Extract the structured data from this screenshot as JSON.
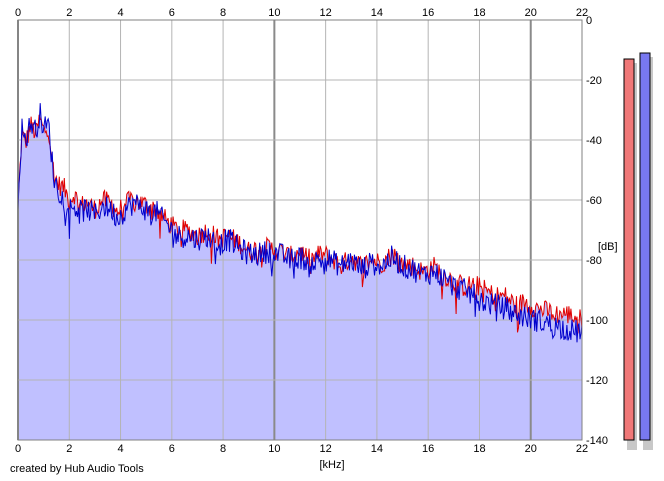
{
  "footer": {
    "credit": "created by Hub Audio Tools"
  },
  "chart_data": {
    "type": "area",
    "xlabel": "[kHz]",
    "ylabel": "[dB]",
    "xlim": [
      0,
      22
    ],
    "ylim": [
      -140,
      0
    ],
    "x_ticks": [
      0,
      2,
      4,
      6,
      8,
      10,
      12,
      14,
      16,
      18,
      20,
      22
    ],
    "y_ticks": [
      0,
      -20,
      -40,
      -60,
      -80,
      -100,
      -120,
      -140
    ],
    "y_tick_labels": [
      "0",
      "-20",
      "-40",
      "-60",
      "-80",
      "-100",
      "-120",
      "-140"
    ],
    "grid": true,
    "series": [
      {
        "color": "#e00000",
        "x": [
          0,
          0.15,
          0.3,
          0.5,
          0.7,
          0.85,
          1.0,
          1.2,
          1.4,
          1.6,
          1.8,
          2.0,
          2.2,
          2.4,
          2.7,
          3.0,
          3.3,
          3.6,
          3.9,
          4.2,
          4.5,
          4.8,
          5.1,
          5.4,
          5.8,
          6.2,
          6.6,
          7.0,
          7.4,
          7.8,
          8.2,
          8.6,
          9.0,
          9.4,
          9.8,
          10.2,
          10.6,
          11.0,
          11.4,
          11.8,
          12.2,
          12.6,
          13.0,
          13.4,
          13.8,
          14.2,
          14.6,
          15.0,
          15.4,
          15.8,
          16.2,
          16.6,
          17.0,
          17.4,
          17.8,
          18.2,
          18.6,
          19.0,
          19.4,
          19.8,
          20.2,
          20.6,
          21.0,
          21.4,
          21.8,
          22.0
        ],
        "values": [
          -62,
          -38,
          -41,
          -35,
          -38,
          -33,
          -37,
          -36,
          -52,
          -55,
          -56,
          -60,
          -58,
          -62,
          -61,
          -63,
          -60,
          -61,
          -64,
          -61,
          -60,
          -61,
          -62,
          -63,
          -67,
          -70,
          -70,
          -72,
          -70,
          -73,
          -72,
          -74,
          -77,
          -76,
          -76,
          -77,
          -79,
          -77,
          -80,
          -78,
          -79,
          -82,
          -79,
          -82,
          -80,
          -81,
          -78,
          -81,
          -82,
          -84,
          -82,
          -85,
          -87,
          -89,
          -88,
          -90,
          -92,
          -92,
          -95,
          -94,
          -96,
          -97,
          -98,
          -98,
          -99,
          -100
        ]
      },
      {
        "color": "#0000cc",
        "x": [
          0,
          0.15,
          0.3,
          0.5,
          0.7,
          0.85,
          1.0,
          1.2,
          1.4,
          1.6,
          1.8,
          2.0,
          2.2,
          2.4,
          2.7,
          3.0,
          3.3,
          3.6,
          3.9,
          4.2,
          4.5,
          4.8,
          5.1,
          5.4,
          5.8,
          6.2,
          6.6,
          7.0,
          7.4,
          7.8,
          8.2,
          8.6,
          9.0,
          9.4,
          9.8,
          10.2,
          10.6,
          11.0,
          11.4,
          11.8,
          12.2,
          12.6,
          13.0,
          13.4,
          13.8,
          14.2,
          14.6,
          15.0,
          15.4,
          15.8,
          16.2,
          16.6,
          17.0,
          17.4,
          17.8,
          18.2,
          18.6,
          19.0,
          19.4,
          19.8,
          20.2,
          20.6,
          21.0,
          21.4,
          21.8,
          22.0
        ],
        "values": [
          -60,
          -36,
          -40,
          -34,
          -37,
          -31,
          -36,
          -35,
          -53,
          -57,
          -60,
          -63,
          -62,
          -64,
          -63,
          -65,
          -62,
          -63,
          -66,
          -63,
          -61,
          -62,
          -64,
          -64,
          -68,
          -72,
          -72,
          -73,
          -72,
          -75,
          -73,
          -76,
          -78,
          -78,
          -77,
          -78,
          -80,
          -79,
          -81,
          -80,
          -80,
          -82,
          -80,
          -83,
          -81,
          -82,
          -79,
          -82,
          -83,
          -85,
          -84,
          -86,
          -89,
          -90,
          -92,
          -94,
          -95,
          -96,
          -98,
          -99,
          -100,
          -101,
          -102,
          -103,
          -104,
          -103
        ]
      }
    ],
    "level_meters": [
      {
        "color": "#f07878",
        "value_db": -13
      },
      {
        "color": "#7878f0",
        "value_db": -11
      }
    ]
  }
}
